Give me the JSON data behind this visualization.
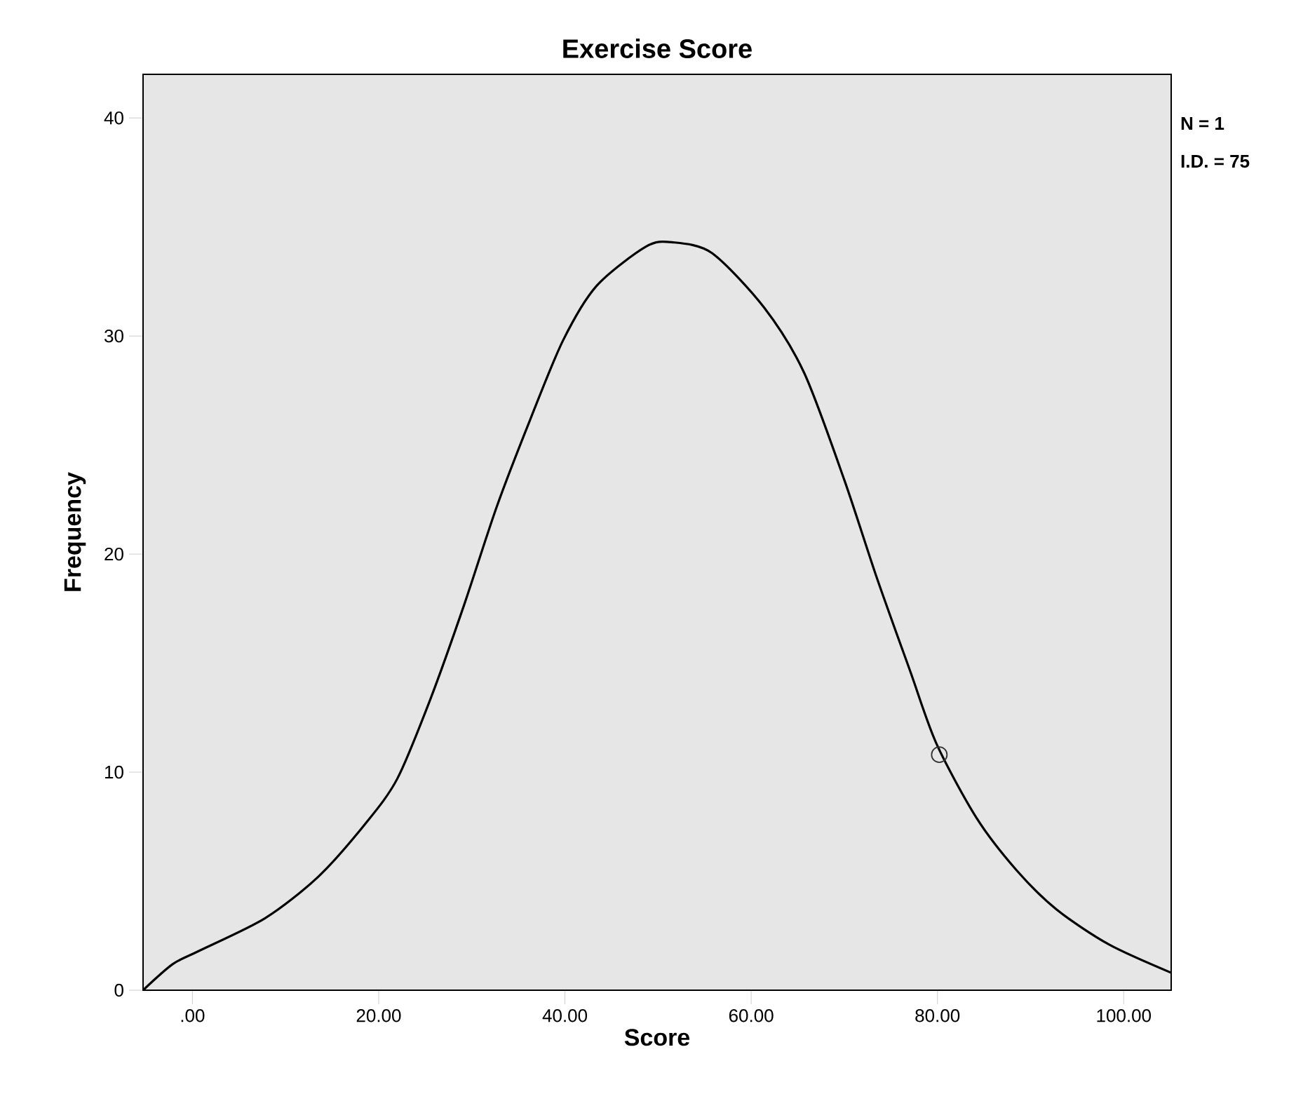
{
  "chart_data": {
    "type": "line",
    "title": "Exercise Score",
    "xlabel": "Score",
    "ylabel": "Frequency",
    "annotations": [
      "N = 1",
      "I.D. = 75"
    ],
    "xlim": [
      -5.3,
      105.1
    ],
    "ylim": [
      0,
      42
    ],
    "xticks": [
      {
        "value": 0,
        "label": ".00"
      },
      {
        "value": 20,
        "label": "20.00"
      },
      {
        "value": 40,
        "label": "40.00"
      },
      {
        "value": 60,
        "label": "60.00"
      },
      {
        "value": 80,
        "label": "80.00"
      },
      {
        "value": 100,
        "label": "100.00"
      }
    ],
    "yticks": [
      0,
      10,
      20,
      30,
      40
    ],
    "grid": false,
    "series": [
      {
        "color": "#000000",
        "x": [
          -5.3,
          -2.1,
          0.7,
          7.8,
          13.5,
          18.5,
          22.0,
          25.6,
          29.2,
          32.7,
          36.3,
          39.8,
          43.4,
          48.7,
          51.5,
          55.8,
          61.4,
          65.7,
          70.0,
          73.5,
          77.1,
          79.9,
          84.2,
          88.5,
          92.8,
          98.4,
          105.1
        ],
        "values": [
          0,
          1.2,
          1.8,
          3.3,
          5.2,
          7.6,
          9.7,
          13.4,
          17.7,
          22.2,
          26.2,
          29.8,
          32.3,
          34.1,
          34.3,
          33.8,
          31.3,
          28.3,
          23.4,
          18.9,
          14.6,
          11.3,
          7.9,
          5.5,
          3.7,
          2.1,
          0.8
        ]
      },
      {
        "type": "scatter",
        "color": "#333333",
        "marker": "circle",
        "x": [
          80.2
        ],
        "values": [
          10.8
        ]
      }
    ]
  }
}
